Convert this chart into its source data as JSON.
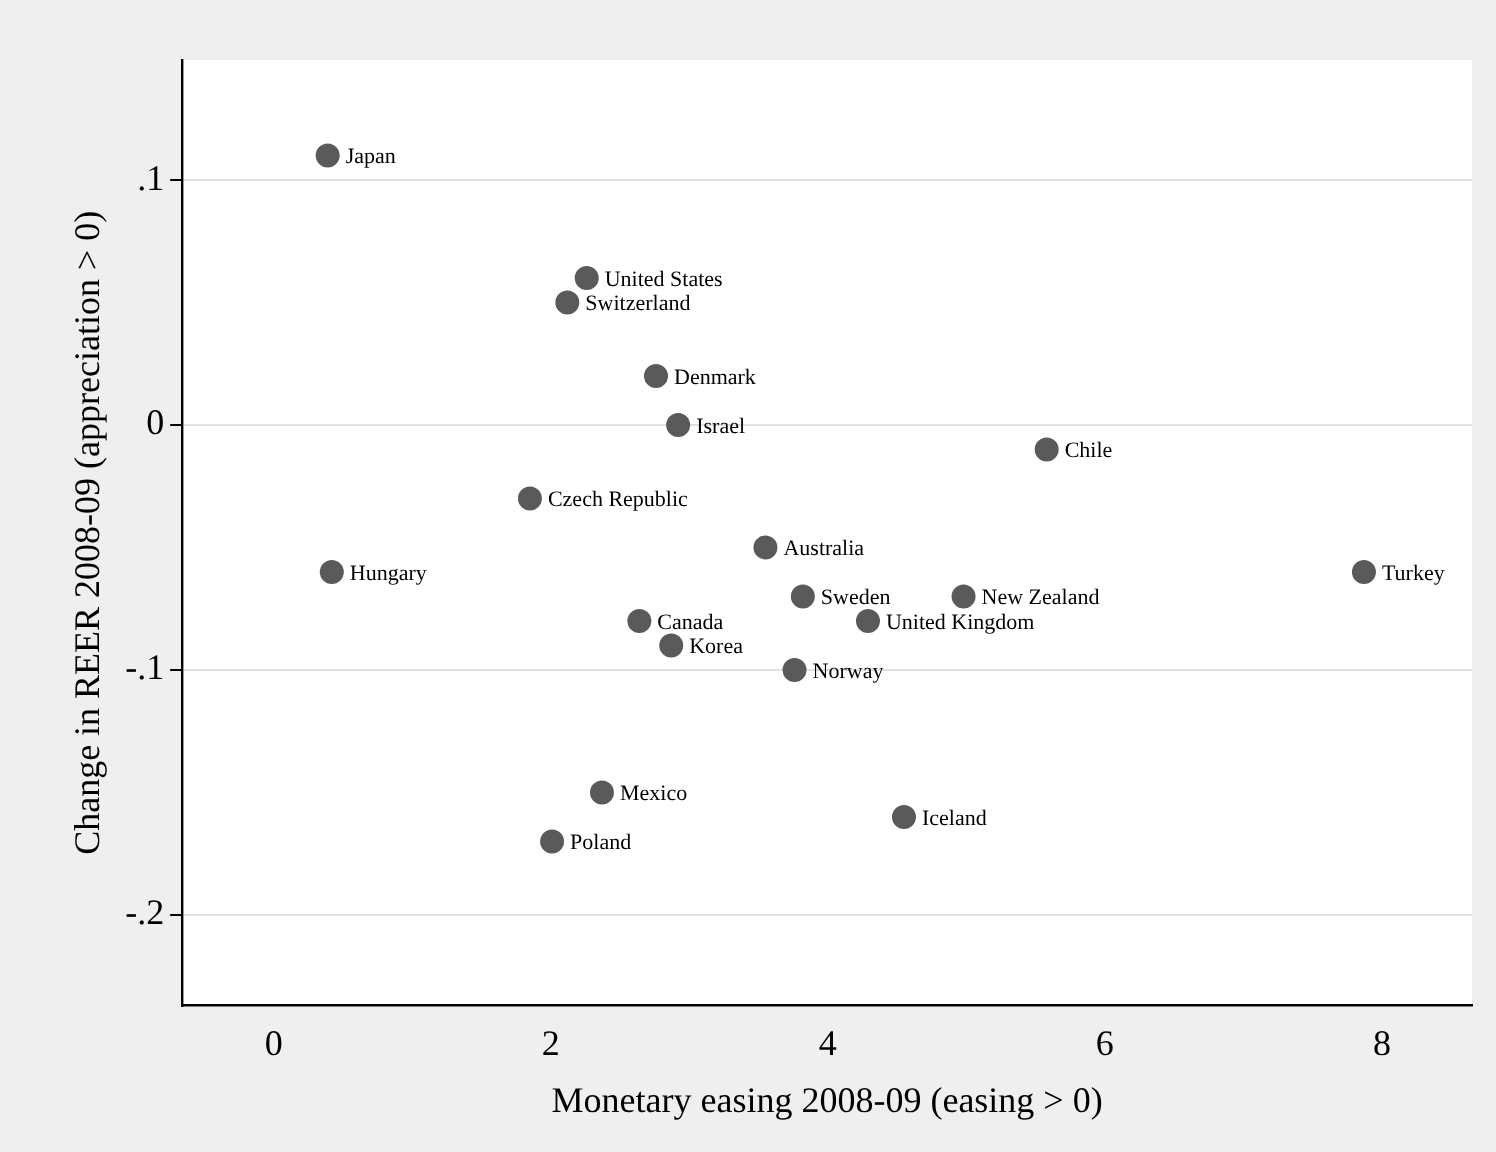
{
  "chart_data": {
    "type": "scatter",
    "xlabel": "Monetary easing 2008-09 (easing > 0)",
    "ylabel": "Change in REER 2008-09 (appreciation > 0)",
    "x": [
      0.39,
      2.26,
      2.12,
      2.76,
      2.92,
      5.58,
      1.85,
      3.55,
      0.42,
      7.87,
      3.82,
      4.98,
      2.64,
      4.29,
      2.87,
      3.76,
      2.37,
      4.55,
      2.01
    ],
    "series": [
      {
        "color": "#5a5a5a",
        "values": [
          0.11,
          0.06,
          0.05,
          0.02,
          0,
          -0.01,
          -0.03,
          -0.05,
          -0.06,
          -0.06,
          -0.07,
          -0.07,
          -0.08,
          -0.08,
          -0.09,
          -0.1,
          -0.15,
          -0.16,
          -0.17
        ]
      }
    ],
    "annotations": [
      {
        "text": "Japan",
        "x": 0.39,
        "y": 0.11
      },
      {
        "text": "United States",
        "x": 2.26,
        "y": 0.06
      },
      {
        "text": "Switzerland",
        "x": 2.12,
        "y": 0.05
      },
      {
        "text": "Denmark",
        "x": 2.76,
        "y": 0.02
      },
      {
        "text": "Israel",
        "x": 2.92,
        "y": 0
      },
      {
        "text": "Chile",
        "x": 5.58,
        "y": -0.01
      },
      {
        "text": "Czech Republic",
        "x": 1.85,
        "y": -0.03
      },
      {
        "text": "Australia",
        "x": 3.55,
        "y": -0.05
      },
      {
        "text": "Hungary",
        "x": 0.42,
        "y": -0.06
      },
      {
        "text": "Turkey",
        "x": 7.87,
        "y": -0.06
      },
      {
        "text": "Sweden",
        "x": 3.82,
        "y": -0.07
      },
      {
        "text": "New Zealand",
        "x": 4.98,
        "y": -0.07
      },
      {
        "text": "Canada",
        "x": 2.64,
        "y": -0.08
      },
      {
        "text": "United Kingdom",
        "x": 4.29,
        "y": -0.08
      },
      {
        "text": "Korea",
        "x": 2.87,
        "y": -0.09
      },
      {
        "text": "Norway",
        "x": 3.76,
        "y": -0.1
      },
      {
        "text": "Mexico",
        "x": 2.37,
        "y": -0.15
      },
      {
        "text": "Iceland",
        "x": 4.55,
        "y": -0.16
      },
      {
        "text": "Poland",
        "x": 2.01,
        "y": -0.17
      }
    ],
    "xlim": [
      -0.66,
      8.65
    ],
    "xticks": [
      0,
      2,
      4,
      6,
      8
    ],
    "ylim": [
      -0.237,
      0.149
    ],
    "yticks": [
      {
        "value": 0.1,
        "label": ".1"
      },
      0,
      {
        "value": -0.1,
        "label": "-.1"
      },
      {
        "value": -0.2,
        "label": "-.2"
      }
    ],
    "grid": "y",
    "legend": false,
    "marker": "circle"
  }
}
